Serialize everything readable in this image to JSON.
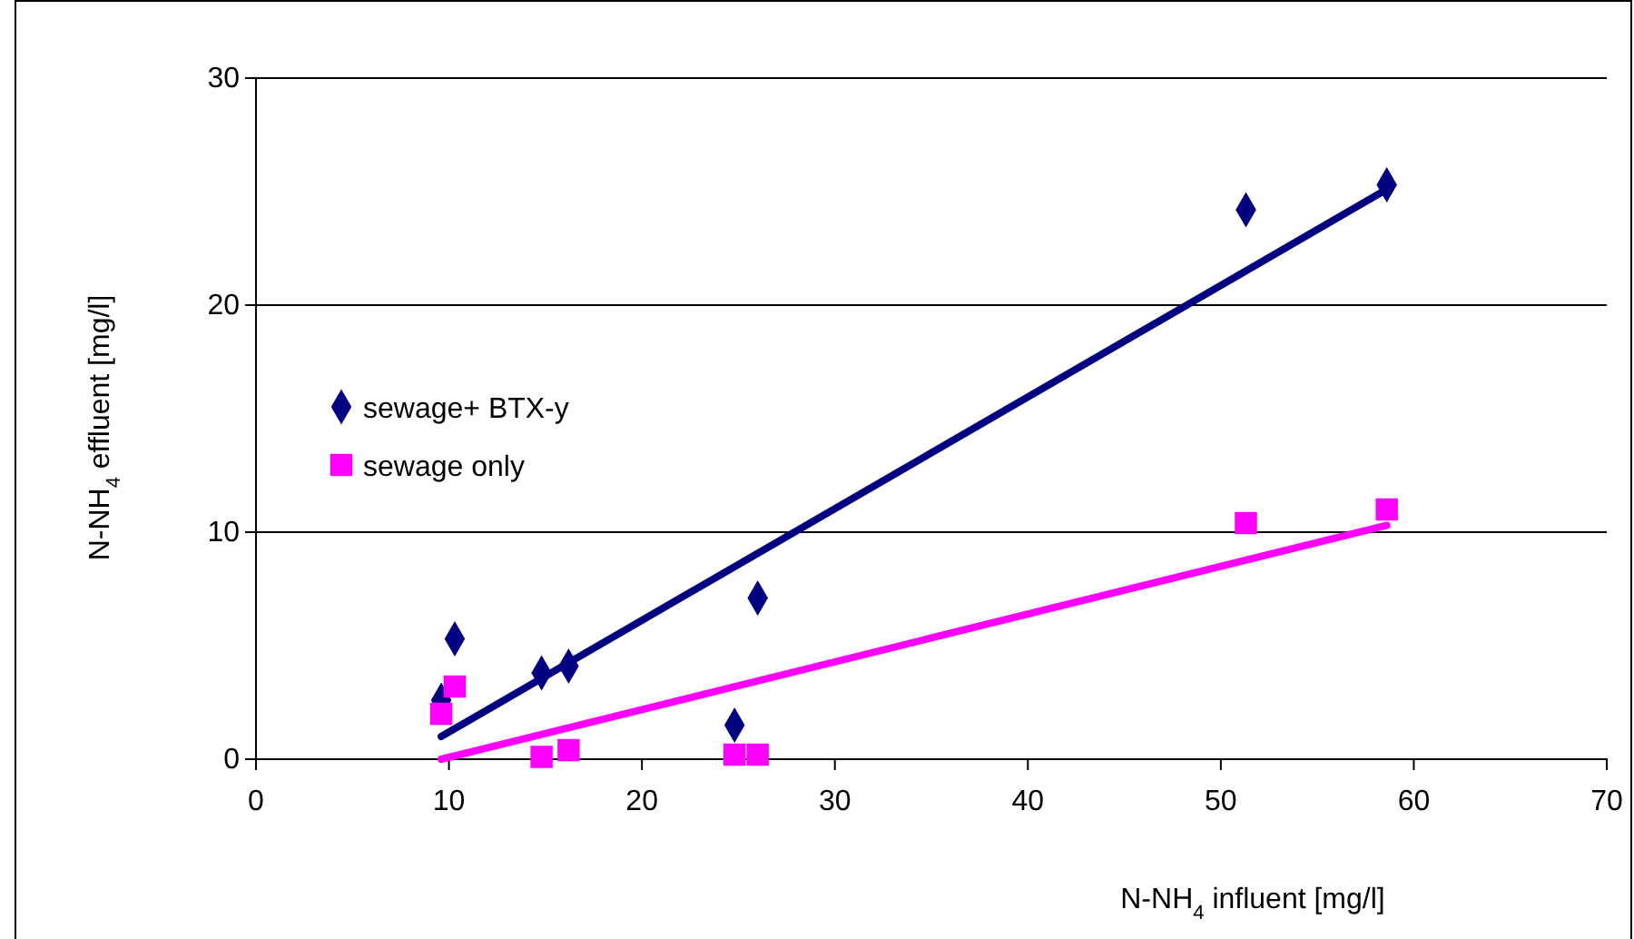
{
  "chart_data": {
    "type": "scatter",
    "xlabel": "N-NH$_{4}$ influent [mg/l]",
    "ylabel": "N-NH$_{4}$ effluent [mg/l]",
    "xlim": [
      0,
      70
    ],
    "xticks": [
      0,
      10,
      20,
      30,
      40,
      50,
      60,
      70
    ],
    "ylim": [
      0,
      30
    ],
    "yticks": [
      0,
      10,
      20,
      30
    ],
    "grid": "y",
    "legend": "left",
    "series": [
      {
        "name": "sewage+ BTX-y",
        "color": "#000080",
        "marker": "diamond",
        "x": [
          9.6,
          10.3,
          14.8,
          16.2,
          24.8,
          26.0,
          51.3,
          58.6
        ],
        "values": [
          2.6,
          5.3,
          3.8,
          4.1,
          1.5,
          7.1,
          24.2,
          25.3
        ]
      },
      {
        "name": "sewage only",
        "color": "#ff00ff",
        "marker": "square",
        "x": [
          9.6,
          10.3,
          14.8,
          16.2,
          24.8,
          26.0,
          51.3,
          58.6
        ],
        "values": [
          2.0,
          3.2,
          0.1,
          0.4,
          0.2,
          0.2,
          10.4,
          11.0
        ]
      },
      {
        "type": "line",
        "color": "#000080",
        "marker": "none",
        "x": [
          9.6,
          58.6
        ],
        "values": [
          1.0,
          25.1
        ]
      },
      {
        "type": "line",
        "color": "#ff00ff",
        "marker": "none",
        "x": [
          9.6,
          58.6
        ],
        "values": [
          0,
          10.3
        ]
      }
    ]
  }
}
